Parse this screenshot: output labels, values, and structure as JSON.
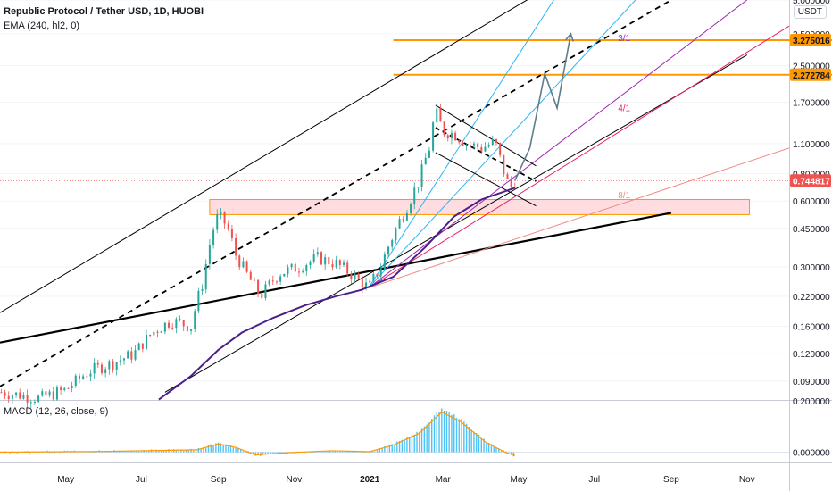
{
  "header": {
    "symbol_title": "Republic Protocol / Tether USD, 1D, HUOBI",
    "ema_legend": "EMA (240, hl2, 0)",
    "macd_legend": "MACD (12, 26, close, 9)",
    "currency_badge": "USDT"
  },
  "colors": {
    "background": "#ffffff",
    "up_candle": "#26a69a",
    "down_candle": "#ef5350",
    "ema": "#4a1f8c",
    "channel": "#000000",
    "fan_1": "#9c27b0",
    "fan_2": "#e91e63",
    "fan_3": "#f28b82",
    "cyan": "#29b6f6",
    "zone_fill": "#ffcdd2",
    "zone_stroke": "#ff9800",
    "target_line": "#ff9800",
    "arrow": "#607d8b",
    "macd_hist": "#4fc3f7",
    "macd_signal": "#ff9800",
    "price_badge": "#ef5350"
  },
  "chart_data": [
    {
      "type": "candlestick",
      "scale": "log",
      "ylim": [
        0.0737,
        5.0
      ],
      "yticks": [
        5.0,
        3.5,
        2.5,
        1.7,
        1.1,
        0.8,
        0.6,
        0.45,
        0.3,
        0.22,
        0.16,
        0.12,
        0.09
      ],
      "ytick_labels": [
        "5.000000",
        "3.500000",
        "2.500000",
        "1.700000",
        "1.100000",
        "0.800000",
        "0.600000",
        "0.450000",
        "0.300000",
        "0.220000",
        "0.160000",
        "0.120000",
        "0.090000"
      ],
      "xtick_labels": [
        "May",
        "Jul",
        "Sep",
        "Nov",
        "2021",
        "Mar",
        "May",
        "Jul",
        "Sep",
        "Nov"
      ],
      "xtick_dates": [
        "2020-05-01",
        "2020-07-01",
        "2020-09-01",
        "2020-11-01",
        "2021-01-01",
        "2021-03-01",
        "2021-05-01",
        "2021-07-01",
        "2021-09-01",
        "2021-11-01"
      ],
      "bold_ticks": [
        "2021"
      ],
      "xlim": [
        "2020-03-09",
        "2021-12-05"
      ],
      "price_path": [
        [
          "2020-03-10",
          0.08
        ],
        [
          "2020-04-10",
          0.075
        ],
        [
          "2020-05-01",
          0.082
        ],
        [
          "2020-05-20",
          0.1
        ],
        [
          "2020-06-10",
          0.11
        ],
        [
          "2020-06-25",
          0.12
        ],
        [
          "2020-07-10",
          0.15
        ],
        [
          "2020-07-25",
          0.17
        ],
        [
          "2020-08-10",
          0.16
        ],
        [
          "2020-08-20",
          0.26
        ],
        [
          "2020-08-27",
          0.43
        ],
        [
          "2020-09-01",
          0.52
        ],
        [
          "2020-09-08",
          0.46
        ],
        [
          "2020-09-15",
          0.34
        ],
        [
          "2020-09-25",
          0.27
        ],
        [
          "2020-10-05",
          0.22
        ],
        [
          "2020-10-20",
          0.28
        ],
        [
          "2020-11-05",
          0.3
        ],
        [
          "2020-11-20",
          0.33
        ],
        [
          "2020-12-05",
          0.31
        ],
        [
          "2020-12-20",
          0.27
        ],
        [
          "2020-12-31",
          0.24
        ],
        [
          "2021-01-10",
          0.3
        ],
        [
          "2021-01-20",
          0.42
        ],
        [
          "2021-02-01",
          0.58
        ],
        [
          "2021-02-10",
          0.75
        ],
        [
          "2021-02-18",
          1.05
        ],
        [
          "2021-02-23",
          1.55
        ],
        [
          "2021-03-01",
          1.25
        ],
        [
          "2021-03-10",
          1.22
        ],
        [
          "2021-03-20",
          1.1
        ],
        [
          "2021-04-01",
          1.05
        ],
        [
          "2021-04-12",
          1.12
        ],
        [
          "2021-04-18",
          0.85
        ],
        [
          "2021-04-24",
          0.68
        ],
        [
          "2021-04-28",
          0.745
        ]
      ],
      "series": [
        {
          "name": "EMA (240, hl2, 0)",
          "x": [
            "2020-07-15",
            "2020-08-10",
            "2020-09-01",
            "2020-09-20",
            "2020-10-15",
            "2020-11-10",
            "2020-12-05",
            "2020-12-25",
            "2021-01-20",
            "2021-02-15",
            "2021-03-10",
            "2021-04-01",
            "2021-04-28"
          ],
          "y": [
            0.074,
            0.095,
            0.125,
            0.15,
            0.175,
            0.2,
            0.22,
            0.235,
            0.27,
            0.37,
            0.51,
            0.61,
            0.69
          ]
        }
      ],
      "trendlines": [
        {
          "role": "channel-lower",
          "from": [
            "2020-03-09",
            0.135
          ],
          "to": [
            "2021-09-01",
            0.53
          ]
        },
        {
          "role": "channel-upper",
          "from": [
            "2020-03-09",
            0.185
          ],
          "to": [
            "2021-05-20",
            5.5
          ]
        },
        {
          "role": "channel-mid",
          "from": [
            "2020-03-09",
            0.085
          ],
          "to": [
            "2021-09-01",
            5.0
          ]
        },
        {
          "role": "parallel",
          "from": [
            "2020-07-20",
            0.08
          ],
          "to": [
            "2021-11-01",
            2.8
          ]
        },
        {
          "role": "fan-3/1",
          "from": [
            "2020-12-31",
            0.24
          ],
          "to": [
            "2021-11-01",
            5.0
          ]
        },
        {
          "role": "fan-4/1",
          "from": [
            "2020-12-31",
            0.24
          ],
          "to": [
            "2021-12-05",
            3.8
          ]
        },
        {
          "role": "fan-8/1",
          "from": [
            "2020-12-31",
            0.24
          ],
          "to": [
            "2021-12-05",
            1.05
          ]
        },
        {
          "role": "cyan-1",
          "from": [
            "2020-12-31",
            0.24
          ],
          "to": [
            "2021-06-03",
            5.5
          ]
        },
        {
          "role": "cyan-2",
          "from": [
            "2020-12-31",
            0.24
          ],
          "to": [
            "2021-08-10",
            5.5
          ]
        },
        {
          "role": "pennant-top",
          "from": [
            "2021-02-23",
            1.65
          ],
          "to": [
            "2021-05-15",
            0.87
          ]
        },
        {
          "role": "pennant-bottom",
          "from": [
            "2021-02-23",
            1.0
          ],
          "to": [
            "2021-05-15",
            0.57
          ]
        },
        {
          "role": "pennant-mid",
          "from": [
            "2021-02-23",
            1.3
          ],
          "to": [
            "2021-05-15",
            0.74
          ]
        }
      ],
      "fan_labels": [
        "3/1",
        "4/1",
        "8/1"
      ],
      "zone": {
        "x": [
          "2020-08-25",
          "2021-11-03"
        ],
        "y": [
          0.52,
          0.61
        ]
      },
      "targets": [
        {
          "label": "3.275016",
          "value": 3.275016
        },
        {
          "label": "2.272784",
          "value": 2.272784
        }
      ],
      "last_price": {
        "label": "0.744817",
        "value": 0.744817
      },
      "arrow_path": [
        [
          "2021-04-28",
          0.745
        ],
        [
          "2021-05-10",
          1.05
        ],
        [
          "2021-05-22",
          2.3
        ],
        [
          "2021-06-01",
          1.6
        ],
        [
          "2021-06-12",
          3.5
        ]
      ]
    },
    {
      "type": "bar",
      "name": "MACD (12, 26, close, 9)",
      "ylim": [
        -0.04,
        0.2
      ],
      "yticks": [
        0.2,
        0.0
      ],
      "ytick_labels": [
        "0.200000",
        "0.000000"
      ],
      "signal_path": [
        [
          "2020-03-09",
          0.0
        ],
        [
          "2020-06-01",
          0.003
        ],
        [
          "2020-08-15",
          0.01
        ],
        [
          "2020-09-01",
          0.035
        ],
        [
          "2020-09-15",
          0.02
        ],
        [
          "2020-10-01",
          -0.012
        ],
        [
          "2020-10-20",
          -0.004
        ],
        [
          "2020-12-01",
          0.006
        ],
        [
          "2021-01-01",
          0.002
        ],
        [
          "2021-01-20",
          0.03
        ],
        [
          "2021-02-10",
          0.08
        ],
        [
          "2021-02-28",
          0.17
        ],
        [
          "2021-03-15",
          0.13
        ],
        [
          "2021-04-05",
          0.04
        ],
        [
          "2021-04-20",
          0.0
        ],
        [
          "2021-04-28",
          -0.015
        ]
      ]
    }
  ]
}
